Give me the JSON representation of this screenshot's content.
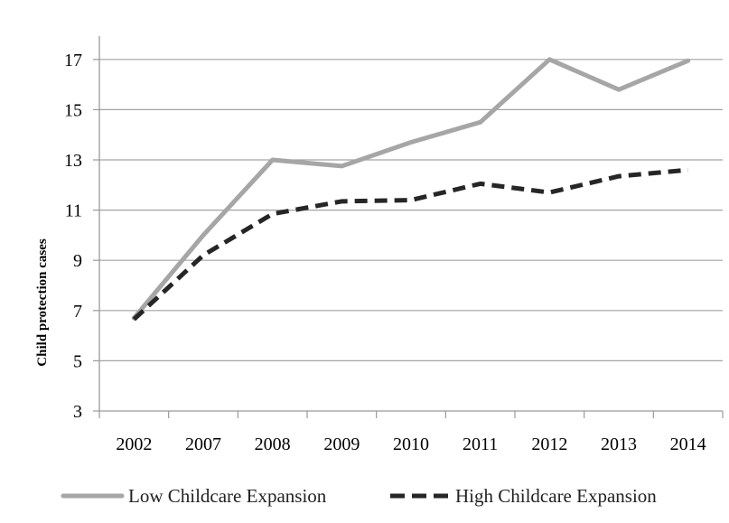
{
  "chart_data": {
    "type": "line",
    "title": "",
    "xlabel": "",
    "ylabel": "Child protection cases",
    "categories": [
      "2002",
      "2007",
      "2008",
      "2009",
      "2010",
      "2011",
      "2012",
      "2013",
      "2014"
    ],
    "ylim": [
      3,
      18
    ],
    "yticks": [
      3,
      5,
      7,
      9,
      11,
      13,
      15,
      17
    ],
    "grid": "horizontal",
    "legend_position": "bottom",
    "series": [
      {
        "name": "Low Childcare Expansion",
        "values": [
          6.7,
          10.0,
          13.0,
          12.75,
          13.7,
          14.5,
          17.0,
          15.8,
          16.95
        ],
        "color": "#a6a6a6",
        "style": "solid"
      },
      {
        "name": "High Childcare Expansion",
        "values": [
          6.65,
          9.2,
          10.85,
          11.35,
          11.4,
          12.05,
          11.7,
          12.35,
          12.6
        ],
        "color": "#262626",
        "style": "dashed"
      }
    ]
  }
}
